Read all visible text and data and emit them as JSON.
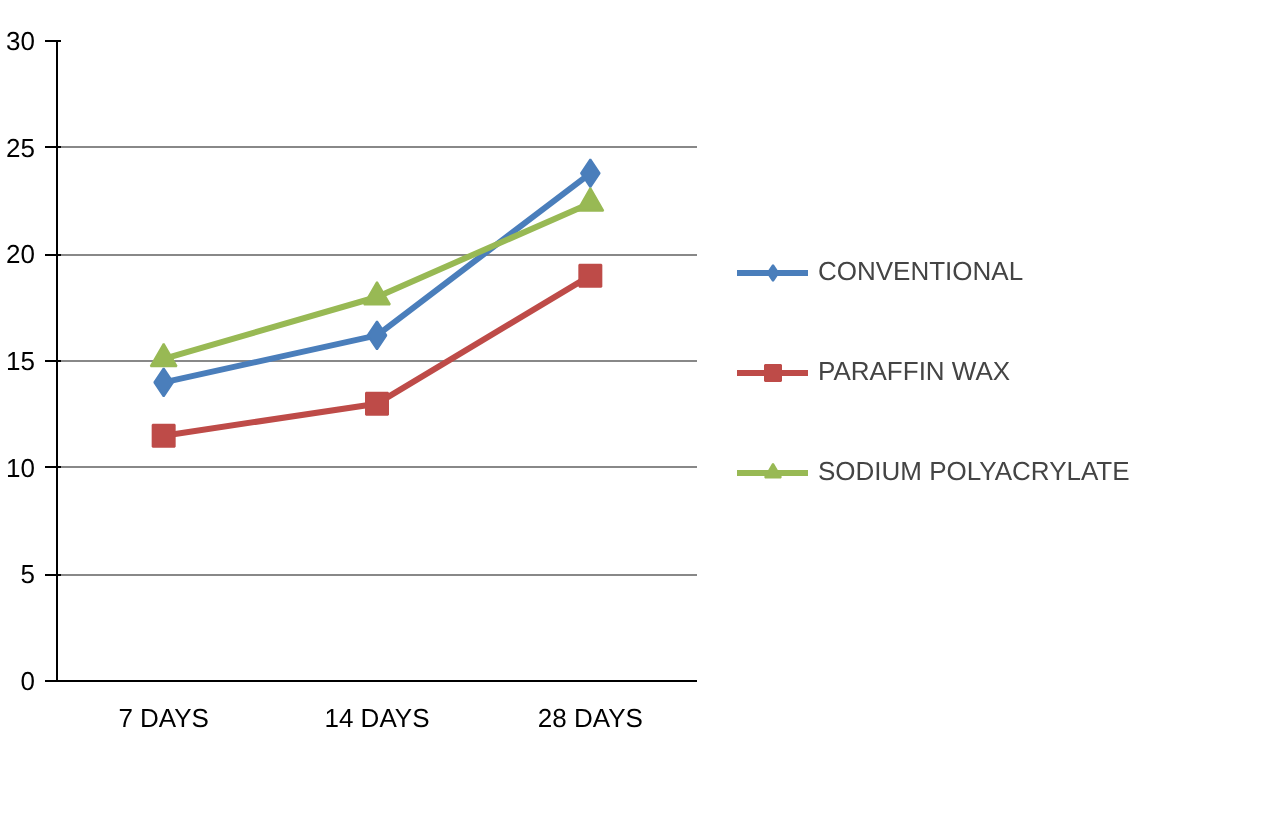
{
  "chart_data": {
    "type": "line",
    "categories": [
      "7 DAYS",
      "14 DAYS",
      "28 DAYS"
    ],
    "series": [
      {
        "name": "CONVENTIONAL",
        "color": "#4a7ebb",
        "marker": "diamond",
        "values": [
          14,
          16.2,
          23.8
        ]
      },
      {
        "name": "PARAFFIN WAX",
        "color": "#be4b48",
        "marker": "square",
        "values": [
          11.5,
          13,
          19
        ]
      },
      {
        "name": "SODIUM POLYACRYLATE",
        "color": "#98b954",
        "marker": "triangle",
        "values": [
          15.1,
          18,
          22.4
        ]
      }
    ],
    "ylim": [
      0,
      30
    ],
    "yticks": [
      0,
      5,
      10,
      15,
      20,
      25,
      30
    ],
    "grid": "y",
    "legend": "right"
  }
}
